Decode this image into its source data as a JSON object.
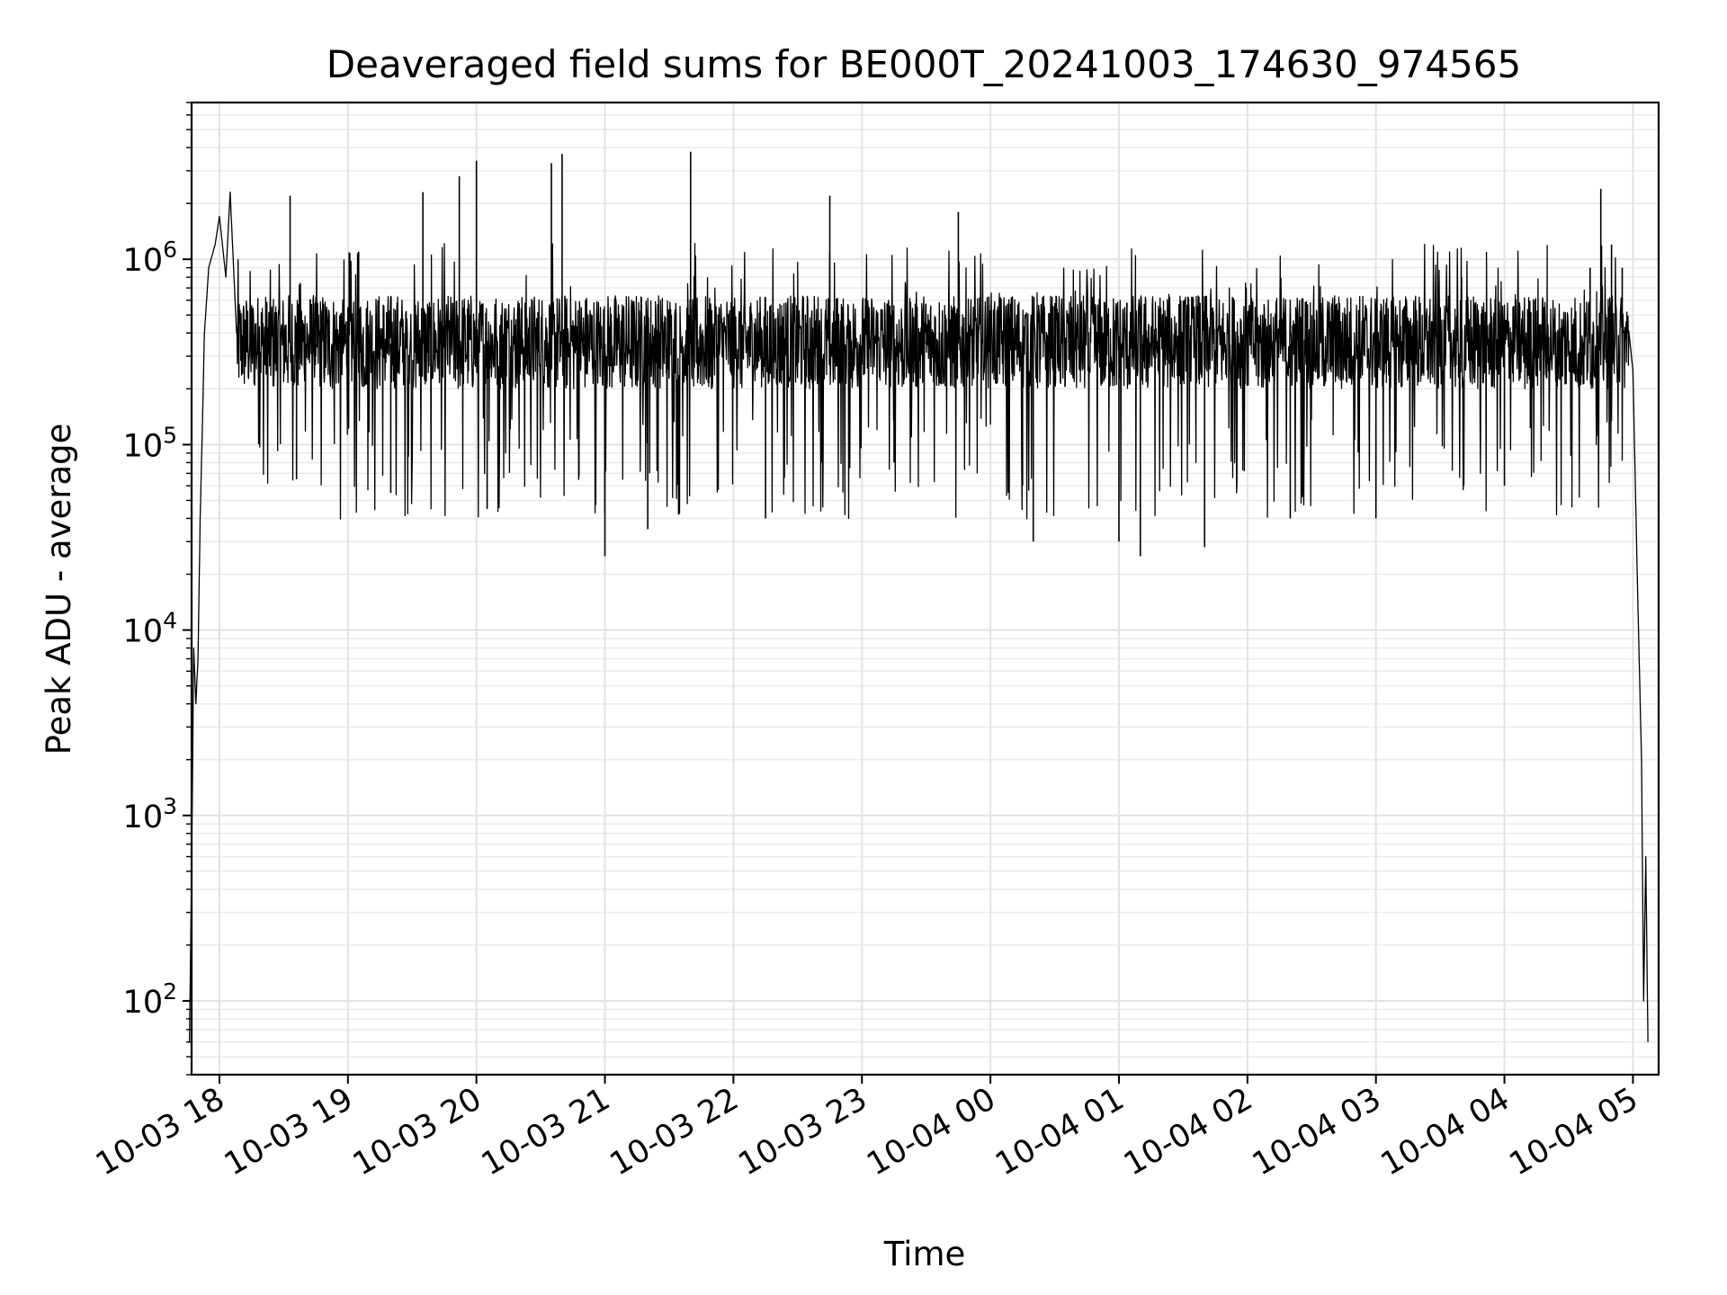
{
  "chart_data": {
    "type": "line",
    "title": "Deaveraged field sums for BE000T_20241003_174630_974565",
    "xlabel": "Time",
    "ylabel": "Peak ADU - average",
    "yscale": "log",
    "xlim": [
      "10-03 17:47",
      "10-04 05:12"
    ],
    "ylim": [
      40,
      7000000
    ],
    "grid": true,
    "xticks": [
      "10-03 18",
      "10-03 19",
      "10-03 20",
      "10-03 21",
      "10-03 22",
      "10-03 23",
      "10-04 00",
      "10-04 01",
      "10-04 02",
      "10-04 03",
      "10-04 04",
      "10-04 05"
    ],
    "yticks": [
      {
        "base": "10",
        "exp": "2",
        "value": 100
      },
      {
        "base": "10",
        "exp": "3",
        "value": 1000
      },
      {
        "base": "10",
        "exp": "4",
        "value": 10000
      },
      {
        "base": "10",
        "exp": "5",
        "value": 100000
      },
      {
        "base": "10",
        "exp": "6",
        "value": 1000000
      }
    ],
    "line_color": "#000000",
    "series": [
      {
        "points": [
          [
            "10-03 17:46",
            60
          ],
          [
            "10-03 17:47",
            500
          ],
          [
            "10-03 17:48",
            8000
          ],
          [
            "10-03 17:49",
            4000
          ],
          [
            "10-03 17:50",
            7000
          ],
          [
            "10-03 17:51",
            40000
          ],
          [
            "10-03 17:52",
            120000
          ],
          [
            "10-03 17:53",
            400000
          ],
          [
            "10-03 17:55",
            900000
          ],
          [
            "10-03 17:58",
            1200000
          ],
          [
            "10-03 18:00",
            1700000
          ],
          [
            "10-03 18:03",
            800000
          ],
          [
            "10-03 18:05",
            2300000
          ],
          [
            "10-03 18:08",
            400000
          ],
          [
            "10-03 18:12",
            300000
          ],
          [
            "10-03 18:20",
            350000
          ],
          [
            "10-03 18:30",
            420000
          ],
          [
            "10-03 18:33",
            2200000
          ],
          [
            "10-03 18:36",
            65000
          ],
          [
            "10-03 18:45",
            300000
          ],
          [
            "10-03 19:00",
            350000
          ],
          [
            "10-03 19:05",
            1100000
          ],
          [
            "10-03 19:15",
            300000
          ],
          [
            "10-03 19:20",
            55000
          ],
          [
            "10-03 19:35",
            2300000
          ],
          [
            "10-03 19:45",
            400000
          ],
          [
            "10-03 19:52",
            2800000
          ],
          [
            "10-03 20:00",
            3400000
          ],
          [
            "10-03 20:05",
            45000
          ],
          [
            "10-03 20:20",
            350000
          ],
          [
            "10-03 20:35",
            3300000
          ],
          [
            "10-03 20:40",
            3700000
          ],
          [
            "10-03 20:50",
            300000
          ],
          [
            "10-03 21:00",
            25000
          ],
          [
            "10-03 21:10",
            380000
          ],
          [
            "10-03 21:20",
            35000
          ],
          [
            "10-03 21:30",
            400000
          ],
          [
            "10-03 21:40",
            3800000
          ],
          [
            "10-03 22:00",
            380000
          ],
          [
            "10-03 22:15",
            40000
          ],
          [
            "10-03 22:30",
            380000
          ],
          [
            "10-03 22:45",
            2200000
          ],
          [
            "10-03 23:00",
            350000
          ],
          [
            "10-03 23:15",
            80000
          ],
          [
            "10-03 23:30",
            360000
          ],
          [
            "10-03 23:45",
            1800000
          ],
          [
            "10-04 00:00",
            350000
          ],
          [
            "10-04 00:15",
            60000
          ],
          [
            "10-04 00:20",
            30000
          ],
          [
            "10-04 00:40",
            320000
          ],
          [
            "10-04 01:00",
            30000
          ],
          [
            "10-04 01:10",
            25000
          ],
          [
            "10-04 01:30",
            330000
          ],
          [
            "10-04 01:40",
            28000
          ],
          [
            "10-04 02:00",
            340000
          ],
          [
            "10-04 02:20",
            40000
          ],
          [
            "10-04 02:40",
            350000
          ],
          [
            "10-04 03:00",
            40000
          ],
          [
            "10-04 03:20",
            360000
          ],
          [
            "10-04 03:40",
            800000
          ],
          [
            "10-04 03:50",
            350000
          ],
          [
            "10-04 04:00",
            60000
          ],
          [
            "10-04 04:20",
            400000
          ],
          [
            "10-04 04:40",
            900000
          ],
          [
            "10-04 04:45",
            2400000
          ],
          [
            "10-04 04:50",
            1200000
          ],
          [
            "10-04 04:55",
            900000
          ],
          [
            "10-04 05:00",
            250000
          ],
          [
            "10-04 05:02",
            20000
          ],
          [
            "10-04 05:04",
            2000
          ],
          [
            "10-04 05:05",
            100
          ],
          [
            "10-04 05:06",
            600
          ],
          [
            "10-04 05:07",
            60
          ]
        ]
      }
    ]
  }
}
